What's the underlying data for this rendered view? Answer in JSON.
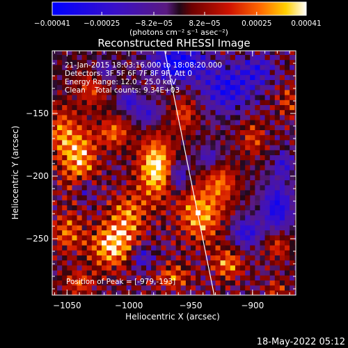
{
  "chart_data": {
    "type": "heatmap",
    "title": "Reconstructed RHESSI Image",
    "xlabel": "Heliocentric X (arcsec)",
    "ylabel": "Heliocentric Y (arcsec)",
    "xlim": [
      -1062,
      -865
    ],
    "ylim": [
      -295,
      -100
    ],
    "x_ticks": [
      -1050,
      -1000,
      -950,
      -900
    ],
    "y_ticks": [
      -150,
      -200,
      -250
    ],
    "x_tick_labels": [
      "−1050",
      "−1000",
      "−950",
      "−900"
    ],
    "y_tick_labels": [
      "−150",
      "−200",
      "−250"
    ],
    "colorbar": {
      "range": [
        -0.00041,
        0.00041
      ],
      "ticks": [
        -0.00041,
        -0.00025,
        -8.2e-05,
        8.2e-05,
        0.00025,
        0.00041
      ],
      "tick_labels": [
        "−0.00041",
        "−0.00025",
        "−8.2e−05",
        "8.2e−05",
        "0.00025",
        "0.00041"
      ],
      "units_label": "(photons cm⁻² s⁻¹ asec⁻²)"
    },
    "annotations": [
      "21-Jan-2015 18:03:16.000 to 18:08:20.000",
      "Detectors: 3F 5F 6F 7F 8F 9F, Att 0",
      "Energy Range: 12.0 - 25.0 keV",
      "Clean    Total counts: 9.34E+03"
    ],
    "peak": {
      "x": -979,
      "y": -193
    },
    "peak_label": "Position of Peak = [-979,-193]",
    "limb_line": [
      [
        -971,
        -100
      ],
      [
        -931,
        -295
      ]
    ],
    "hot_spots": [
      {
        "x": -978,
        "y": -193,
        "value": 0.00041,
        "rx": 14,
        "ry": 24
      },
      {
        "x": -1040,
        "y": -185,
        "value": 0.00032,
        "rx": 14,
        "ry": 26
      },
      {
        "x": -1055,
        "y": -165,
        "value": 0.00022,
        "rx": 10,
        "ry": 20
      },
      {
        "x": -1013,
        "y": -255,
        "value": 0.00036,
        "rx": 18,
        "ry": 18
      },
      {
        "x": -1050,
        "y": -245,
        "value": 0.00022,
        "rx": 12,
        "ry": 16
      },
      {
        "x": -1000,
        "y": -230,
        "value": 0.00024,
        "rx": 14,
        "ry": 18
      },
      {
        "x": -1012,
        "y": -165,
        "value": 0.00024,
        "rx": 12,
        "ry": 12
      },
      {
        "x": -1030,
        "y": -130,
        "value": 0.00018,
        "rx": 12,
        "ry": 14
      },
      {
        "x": -955,
        "y": -150,
        "value": 0.0002,
        "rx": 10,
        "ry": 14
      },
      {
        "x": -942,
        "y": -230,
        "value": 0.00032,
        "rx": 18,
        "ry": 22
      },
      {
        "x": -925,
        "y": -205,
        "value": 0.00022,
        "rx": 12,
        "ry": 14
      },
      {
        "x": -900,
        "y": -170,
        "value": 0.00018,
        "rx": 10,
        "ry": 14
      },
      {
        "x": -920,
        "y": -270,
        "value": 0.00026,
        "rx": 12,
        "ry": 12
      },
      {
        "x": -965,
        "y": -280,
        "value": 0.00022,
        "rx": 14,
        "ry": 10
      },
      {
        "x": -1040,
        "y": -285,
        "value": 0.0002,
        "rx": 12,
        "ry": 10
      },
      {
        "x": -880,
        "y": -255,
        "value": 0.0002,
        "rx": 10,
        "ry": 12
      },
      {
        "x": -870,
        "y": -140,
        "value": 0.00016,
        "rx": 10,
        "ry": 12
      },
      {
        "x": -880,
        "y": -290,
        "value": 0.00016,
        "rx": 8,
        "ry": 8
      },
      {
        "x": -960,
        "y": -110,
        "value": -0.00038,
        "rx": 22,
        "ry": 14
      },
      {
        "x": -920,
        "y": -130,
        "value": -0.0003,
        "rx": 20,
        "ry": 18
      },
      {
        "x": -895,
        "y": -115,
        "value": -0.00022,
        "rx": 14,
        "ry": 12
      },
      {
        "x": -880,
        "y": -225,
        "value": -0.00032,
        "rx": 12,
        "ry": 20
      },
      {
        "x": -905,
        "y": -245,
        "value": -0.00026,
        "rx": 12,
        "ry": 12
      },
      {
        "x": -960,
        "y": -200,
        "value": -0.00026,
        "rx": 8,
        "ry": 12
      },
      {
        "x": -1000,
        "y": -140,
        "value": -0.00024,
        "rx": 8,
        "ry": 8
      },
      {
        "x": -990,
        "y": -265,
        "value": -0.00024,
        "rx": 10,
        "ry": 10
      },
      {
        "x": -1035,
        "y": -210,
        "value": -0.0002,
        "rx": 8,
        "ry": 10
      },
      {
        "x": -1020,
        "y": -115,
        "value": -0.00018,
        "rx": 8,
        "ry": 8
      },
      {
        "x": -985,
        "y": -150,
        "value": -0.00022,
        "rx": 10,
        "ry": 10
      },
      {
        "x": -935,
        "y": -185,
        "value": -0.0002,
        "rx": 8,
        "ry": 8
      },
      {
        "x": -875,
        "y": -190,
        "value": -0.00022,
        "rx": 8,
        "ry": 10
      }
    ],
    "grid": false,
    "legend": "colorbar-top"
  },
  "footer": {
    "timestamp": "18-May-2022 05:12"
  },
  "colors": {
    "background": "#000000",
    "foreground": "#ffffff"
  }
}
